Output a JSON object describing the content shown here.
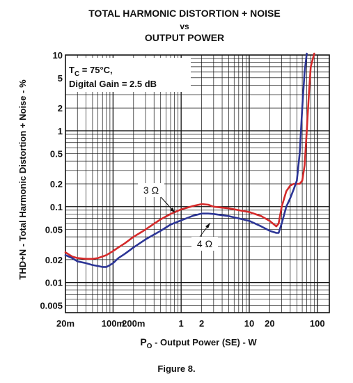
{
  "chart_data": {
    "type": "line",
    "title": [
      "TOTAL HARMONIC DISTORTION + NOISE",
      "vs",
      "OUTPUT POWER"
    ],
    "xlabel_prefix": "P",
    "xlabel_sub": "O",
    "xlabel_rest": " - Output Power (SE) - W",
    "ylabel": "THD+N - Total Harmonic Distortion + Noise - %",
    "x_scale": "log",
    "y_scale": "log",
    "xlim": [
      0.02,
      150
    ],
    "ylim": [
      0.004,
      10
    ],
    "grid": true,
    "x_ticks": [
      {
        "value": 0.02,
        "label": "20m"
      },
      {
        "value": 0.1,
        "label": "100m"
      },
      {
        "value": 0.2,
        "label": "200m"
      },
      {
        "value": 1,
        "label": "1"
      },
      {
        "value": 2,
        "label": "2"
      },
      {
        "value": 10,
        "label": "10"
      },
      {
        "value": 20,
        "label": "20"
      },
      {
        "value": 100,
        "label": "100"
      }
    ],
    "y_ticks": [
      {
        "value": 10,
        "label": "10"
      },
      {
        "value": 5,
        "label": "5"
      },
      {
        "value": 2,
        "label": "2"
      },
      {
        "value": 1,
        "label": "1"
      },
      {
        "value": 0.5,
        "label": "0.5"
      },
      {
        "value": 0.2,
        "label": "0.2"
      },
      {
        "value": 0.1,
        "label": "0.1"
      },
      {
        "value": 0.05,
        "label": "0.05"
      },
      {
        "value": 0.02,
        "label": "0.02"
      },
      {
        "value": 0.01,
        "label": "0.01"
      },
      {
        "value": 0.005,
        "label": "0.005"
      }
    ],
    "conditions": {
      "line1_prefix": "T",
      "line1_sub": "C",
      "line1_rest": " = 75°C,",
      "line2": "Digital Gain = 2.5 dB"
    },
    "series": [
      {
        "name": "3 Ω",
        "color": "#d42a2a",
        "x": [
          0.02,
          0.025,
          0.03,
          0.04,
          0.05,
          0.06,
          0.07,
          0.08,
          0.1,
          0.12,
          0.15,
          0.2,
          0.3,
          0.5,
          0.7,
          1.0,
          1.5,
          2.0,
          2.5,
          3,
          5,
          7,
          10,
          15,
          20,
          25,
          27,
          30,
          35,
          40,
          45,
          50,
          55,
          60,
          65,
          70,
          75,
          80,
          90
        ],
        "values": [
          0.025,
          0.022,
          0.021,
          0.0205,
          0.0205,
          0.021,
          0.022,
          0.023,
          0.026,
          0.029,
          0.033,
          0.04,
          0.05,
          0.068,
          0.08,
          0.092,
          0.102,
          0.108,
          0.106,
          0.1,
          0.095,
          0.09,
          0.085,
          0.075,
          0.065,
          0.055,
          0.06,
          0.1,
          0.16,
          0.19,
          0.2,
          0.2,
          0.2,
          0.22,
          0.35,
          1.0,
          3.0,
          7.0,
          12.0
        ]
      },
      {
        "name": "4 Ω",
        "color": "#2c3596",
        "x": [
          0.02,
          0.025,
          0.03,
          0.04,
          0.05,
          0.06,
          0.07,
          0.08,
          0.09,
          0.1,
          0.12,
          0.15,
          0.2,
          0.3,
          0.5,
          0.7,
          1.0,
          1.5,
          2.0,
          2.5,
          3,
          5,
          7,
          10,
          15,
          20,
          25,
          27,
          30,
          35,
          40,
          45,
          50,
          55,
          60,
          65,
          70
        ],
        "values": [
          0.023,
          0.021,
          0.019,
          0.018,
          0.017,
          0.0165,
          0.016,
          0.016,
          0.017,
          0.018,
          0.021,
          0.024,
          0.029,
          0.037,
          0.048,
          0.058,
          0.066,
          0.076,
          0.081,
          0.081,
          0.08,
          0.075,
          0.07,
          0.065,
          0.055,
          0.048,
          0.045,
          0.045,
          0.06,
          0.1,
          0.13,
          0.17,
          0.22,
          0.5,
          2.0,
          6.0,
          12.0
        ]
      }
    ]
  },
  "figure_caption": "Figure 8."
}
